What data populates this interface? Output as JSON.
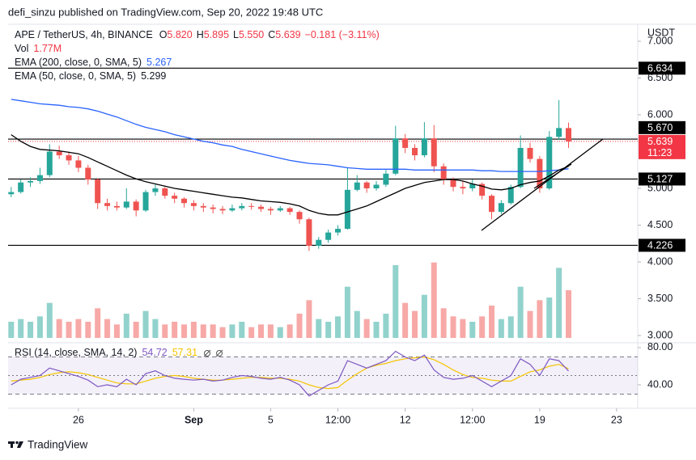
{
  "header": {
    "text": "defi_sinzu published on TradingView.com, Sep 20, 2022 19:48 UTC"
  },
  "footer": {
    "brand": "TradingView"
  },
  "chart_data": {
    "type": "candlestick",
    "title": "APE / TetherUS, 4h, BINANCE",
    "ohlc_legend": [
      {
        "key": "O",
        "value": "5.820"
      },
      {
        "key": "H",
        "value": "5.895"
      },
      {
        "key": "L",
        "value": "5.550"
      },
      {
        "key": "C",
        "value": "5.639"
      }
    ],
    "change": "−0.181 (−3.11%)",
    "currency": "USDT",
    "up_color": "#26a69a",
    "down_color": "#ef5350",
    "x": [
      22.5,
      23,
      23.5,
      24,
      24.5,
      25,
      25.5,
      26,
      26.5,
      27,
      27.5,
      28,
      28.5,
      29,
      29.5,
      30,
      30.5,
      31,
      31.5,
      32,
      32.5,
      33,
      33.5,
      34,
      34.5,
      35,
      35.5,
      36,
      36.5,
      37,
      37.5,
      38,
      38.5,
      39,
      39.5,
      40,
      40.5,
      41,
      41.5,
      42,
      42.5,
      43,
      43.5,
      44,
      44.5,
      45,
      45.5,
      46,
      46.5,
      47,
      47.5,
      48,
      48.5,
      49,
      49.5,
      50,
      50.5,
      51,
      51.5
    ],
    "candles": [
      [
        4.92,
        5.02,
        4.88,
        4.95
      ],
      [
        4.95,
        5.12,
        4.93,
        5.08
      ],
      [
        5.08,
        5.15,
        5.02,
        5.1
      ],
      [
        5.1,
        5.28,
        5.06,
        5.18
      ],
      [
        5.18,
        5.6,
        5.15,
        5.5
      ],
      [
        5.5,
        5.58,
        5.4,
        5.45
      ],
      [
        5.45,
        5.5,
        5.32,
        5.38
      ],
      [
        5.38,
        5.44,
        5.22,
        5.28
      ],
      [
        5.28,
        5.32,
        5.05,
        5.12
      ],
      [
        5.12,
        5.14,
        4.72,
        4.8
      ],
      [
        4.8,
        4.86,
        4.7,
        4.76
      ],
      [
        4.76,
        4.82,
        4.7,
        4.74
      ],
      [
        4.74,
        5,
        4.72,
        4.82
      ],
      [
        4.82,
        4.85,
        4.62,
        4.7
      ],
      [
        4.7,
        4.98,
        4.68,
        4.95
      ],
      [
        4.95,
        5.05,
        4.9,
        5
      ],
      [
        5,
        5.02,
        4.86,
        4.9
      ],
      [
        4.9,
        4.94,
        4.8,
        4.86
      ],
      [
        4.86,
        4.88,
        4.74,
        4.8
      ],
      [
        4.8,
        4.84,
        4.7,
        4.76
      ],
      [
        4.76,
        4.8,
        4.68,
        4.74
      ],
      [
        4.74,
        4.78,
        4.66,
        4.72
      ],
      [
        4.72,
        4.76,
        4.65,
        4.7
      ],
      [
        4.7,
        4.78,
        4.68,
        4.73
      ],
      [
        4.73,
        4.8,
        4.7,
        4.76
      ],
      [
        4.76,
        4.8,
        4.71,
        4.75
      ],
      [
        4.75,
        4.78,
        4.68,
        4.72
      ],
      [
        4.72,
        4.75,
        4.64,
        4.7
      ],
      [
        4.7,
        4.76,
        4.68,
        4.73
      ],
      [
        4.73,
        4.75,
        4.64,
        4.68
      ],
      [
        4.68,
        4.7,
        4.52,
        4.58
      ],
      [
        4.58,
        4.6,
        4.15,
        4.22
      ],
      [
        4.22,
        4.34,
        4.18,
        4.3
      ],
      [
        4.3,
        4.44,
        4.26,
        4.4
      ],
      [
        4.4,
        4.5,
        4.36,
        4.45
      ],
      [
        4.45,
        5.28,
        4.44,
        4.98
      ],
      [
        4.98,
        5.18,
        4.96,
        5.08
      ],
      [
        5.08,
        5.1,
        4.94,
        5
      ],
      [
        5,
        5.1,
        4.97,
        5.05
      ],
      [
        5.05,
        5.25,
        5.02,
        5.2
      ],
      [
        5.2,
        5.85,
        5.18,
        5.68
      ],
      [
        5.68,
        5.74,
        5.48,
        5.55
      ],
      [
        5.55,
        5.6,
        5.38,
        5.45
      ],
      [
        5.45,
        5.9,
        5.42,
        5.68
      ],
      [
        5.68,
        5.86,
        5.22,
        5.3
      ],
      [
        5.3,
        5.34,
        5.05,
        5.12
      ],
      [
        5.12,
        5.15,
        4.96,
        5.02
      ],
      [
        5.02,
        5.1,
        4.92,
        5
      ],
      [
        5,
        5.12,
        4.96,
        5.06
      ],
      [
        5.06,
        5.08,
        4.85,
        4.9
      ],
      [
        4.9,
        4.92,
        4.58,
        4.68
      ],
      [
        4.68,
        4.84,
        4.65,
        4.8
      ],
      [
        4.8,
        5.05,
        4.78,
        5.02
      ],
      [
        5.02,
        5.72,
        5,
        5.55
      ],
      [
        5.55,
        5.62,
        5.35,
        5.4
      ],
      [
        5.4,
        5.44,
        4.94,
        5
      ],
      [
        5,
        5.78,
        4.98,
        5.7
      ],
      [
        5.7,
        6.2,
        5.66,
        5.82
      ],
      [
        5.82,
        5.895,
        5.55,
        5.639
      ]
    ],
    "xlim": [
      22.34,
      55.1
    ],
    "xticks": [
      26,
      {
        "value": 32,
        "label": "Sep"
      },
      {
        "value": 36,
        "label": "5"
      },
      {
        "value": 39.5,
        "label": "12:00"
      },
      {
        "value": 43,
        "label": "12"
      },
      {
        "value": 46.5,
        "label": "12:00"
      },
      {
        "value": 50,
        "label": "19"
      },
      {
        "value": 54,
        "label": "23"
      }
    ],
    "ylim": [
      2.967,
      7.231
    ],
    "yticks": [
      {
        "value": 7,
        "label": "7.000"
      },
      {
        "value": 6.5,
        "label": "6.500"
      },
      {
        "value": 6,
        "label": "6.000"
      },
      {
        "value": 5,
        "label": "5.000"
      },
      {
        "value": 4.5,
        "label": "4.500"
      },
      {
        "value": 4,
        "label": "4.000"
      },
      {
        "value": 3.5,
        "label": "3.500"
      },
      {
        "value": 3,
        "label": "3.000"
      }
    ],
    "last_price_color": "#f23645",
    "countdown": "11:23",
    "levels": [
      6.634,
      {
        "value": 5.67,
        "label": "5.670"
      },
      5.127,
      4.226
    ],
    "series": [
      {
        "name": "EMA (200, close, 0, SMA, 5)",
        "color": "#2962ff",
        "values": [
          6.21,
          6.19,
          6.17,
          6.15,
          6.14,
          6.13,
          6.11,
          6.1,
          6.08,
          6.05,
          6.01,
          5.97,
          5.92,
          5.87,
          5.83,
          5.8,
          5.77,
          5.73,
          5.7,
          5.67,
          5.64,
          5.62,
          5.59,
          5.57,
          5.53,
          5.5,
          5.47,
          5.44,
          5.41,
          5.38,
          5.36,
          5.34,
          5.33,
          5.32,
          5.3,
          5.28,
          5.27,
          5.26,
          5.26,
          5.26,
          5.26,
          5.26,
          5.25,
          5.25,
          5.25,
          5.25,
          5.25,
          5.25,
          5.25,
          5.24,
          5.24,
          5.23,
          5.23,
          5.23,
          5.23,
          5.23,
          5.24,
          5.25,
          5.267
        ]
      },
      {
        "name": "EMA (50, close, 0, SMA, 5)",
        "color": "#000000",
        "values": [
          5.73,
          5.64,
          5.57,
          5.53,
          5.52,
          5.51,
          5.49,
          5.47,
          5.42,
          5.36,
          5.3,
          5.24,
          5.18,
          5.13,
          5.09,
          5.06,
          5.03,
          5,
          4.98,
          4.96,
          4.94,
          4.92,
          4.9,
          4.88,
          4.87,
          4.85,
          4.83,
          4.82,
          4.81,
          4.79,
          4.76,
          4.7,
          4.66,
          4.64,
          4.64,
          4.68,
          4.72,
          4.76,
          4.82,
          4.88,
          4.94,
          5,
          5.04,
          5.08,
          5.1,
          5.12,
          5.12,
          5.1,
          5.06,
          5.03,
          4.99,
          4.98,
          5,
          5.05,
          5.08,
          5.1,
          5.17,
          5.25,
          5.299
        ]
      }
    ],
    "volume": {
      "name": "Vol",
      "last_label": "1.77M",
      "ylim": [
        0,
        3300000
      ],
      "values": [
        600000,
        700000,
        600000,
        800000,
        1300000,
        700000,
        600000,
        700000,
        600000,
        1100000,
        700000,
        500000,
        900000,
        600000,
        1000000,
        700000,
        500000,
        600000,
        500000,
        600000,
        500000,
        500000,
        400000,
        500000,
        600000,
        400000,
        500000,
        500000,
        400000,
        500000,
        900000,
        1400000,
        700000,
        600000,
        800000,
        1900000,
        1000000,
        700000,
        600000,
        900000,
        2700000,
        1300000,
        1000000,
        1600000,
        2800000,
        1100000,
        800000,
        700000,
        600000,
        800000,
        1200000,
        700000,
        800000,
        1900000,
        1000000,
        1400000,
        1500000,
        2600000,
        1770000
      ]
    },
    "rsi": {
      "name": "RSI (14, close, SMA, 14, 2)",
      "color": "#7e57c2",
      "sma_color": "#f5c400",
      "ylim": [
        14.8,
        84.3
      ],
      "yticks": [
        {
          "value": 80,
          "label": "80.00"
        },
        {
          "value": 40,
          "label": "40.00"
        }
      ],
      "bands": [
        70,
        50,
        30
      ],
      "values": [
        40,
        46,
        48,
        50,
        58,
        55,
        52,
        49,
        45,
        38,
        40,
        38,
        46,
        40,
        52,
        55,
        50,
        47,
        46,
        45,
        46,
        44,
        45,
        48,
        50,
        49,
        47,
        46,
        48,
        45,
        40,
        28,
        34,
        40,
        44,
        66,
        62,
        58,
        62,
        66,
        76,
        70,
        66,
        72,
        56,
        48,
        46,
        47,
        50,
        44,
        38,
        44,
        50,
        68,
        62,
        50,
        68,
        66,
        54.72
      ],
      "sma_values": [
        44,
        45,
        46,
        48,
        51,
        53,
        54,
        53,
        51,
        48,
        45,
        42,
        41,
        41,
        44,
        47,
        49,
        50,
        49,
        47,
        46,
        45,
        45,
        46,
        47,
        48,
        48,
        47,
        47,
        46,
        44,
        40,
        37,
        36,
        37,
        45,
        52,
        58,
        61,
        63,
        66,
        68,
        69,
        70,
        67,
        62,
        56,
        51,
        48,
        47,
        45,
        44,
        44,
        49,
        54,
        56,
        60,
        62,
        57.31
      ]
    }
  }
}
